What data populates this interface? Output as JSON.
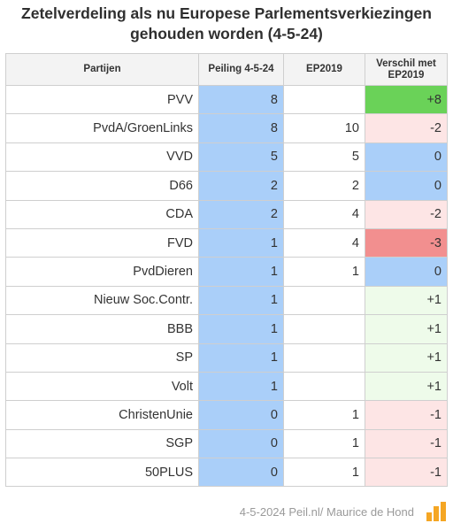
{
  "title": {
    "line1": "Zetelverdeling als nu Europese Parlementsverkiezingen",
    "line2": "gehouden worden (4-5-24)"
  },
  "colors": {
    "poll_fill": "#aacff9",
    "plus_strong": "#6ad258",
    "plus_light": "#eefbea",
    "minus_light": "#fde5e5",
    "minus_strong": "#f28f8f",
    "zero_fill": "#aacff9",
    "header_bg": "#f3f3f3"
  },
  "chart_data": {
    "type": "table",
    "title": "Zetelverdeling als nu Europese Parlementsverkiezingen gehouden worden (4-5-24)",
    "columns": [
      "Partijen",
      "Peiling 4-5-24",
      "EP2019",
      "Verschil met EP2019"
    ],
    "rows": [
      {
        "party": "PVV",
        "poll": "8",
        "ep2019": "",
        "diff": "+8"
      },
      {
        "party": "PvdA/GroenLinks",
        "poll": "8",
        "ep2019": "10",
        "diff": "-2"
      },
      {
        "party": "VVD",
        "poll": "5",
        "ep2019": "5",
        "diff": "0"
      },
      {
        "party": "D66",
        "poll": "2",
        "ep2019": "2",
        "diff": "0"
      },
      {
        "party": "CDA",
        "poll": "2",
        "ep2019": "4",
        "diff": "-2"
      },
      {
        "party": "FVD",
        "poll": "1",
        "ep2019": "4",
        "diff": "-3"
      },
      {
        "party": "PvdDieren",
        "poll": "1",
        "ep2019": "1",
        "diff": "0"
      },
      {
        "party": "Nieuw Soc.Contr.",
        "poll": "1",
        "ep2019": "",
        "diff": "+1"
      },
      {
        "party": "BBB",
        "poll": "1",
        "ep2019": "",
        "diff": "+1"
      },
      {
        "party": "SP",
        "poll": "1",
        "ep2019": "",
        "diff": "+1"
      },
      {
        "party": "Volt",
        "poll": "1",
        "ep2019": "",
        "diff": "+1"
      },
      {
        "party": "ChristenUnie",
        "poll": "0",
        "ep2019": "1",
        "diff": "-1"
      },
      {
        "party": "SGP",
        "poll": "0",
        "ep2019": "1",
        "diff": "-1"
      },
      {
        "party": "50PLUS",
        "poll": "0",
        "ep2019": "1",
        "diff": "-1"
      }
    ]
  },
  "footer": {
    "text": "4-5-2024 Peil.nl/ Maurice de Hond",
    "logo_text": "Peil.nl"
  }
}
